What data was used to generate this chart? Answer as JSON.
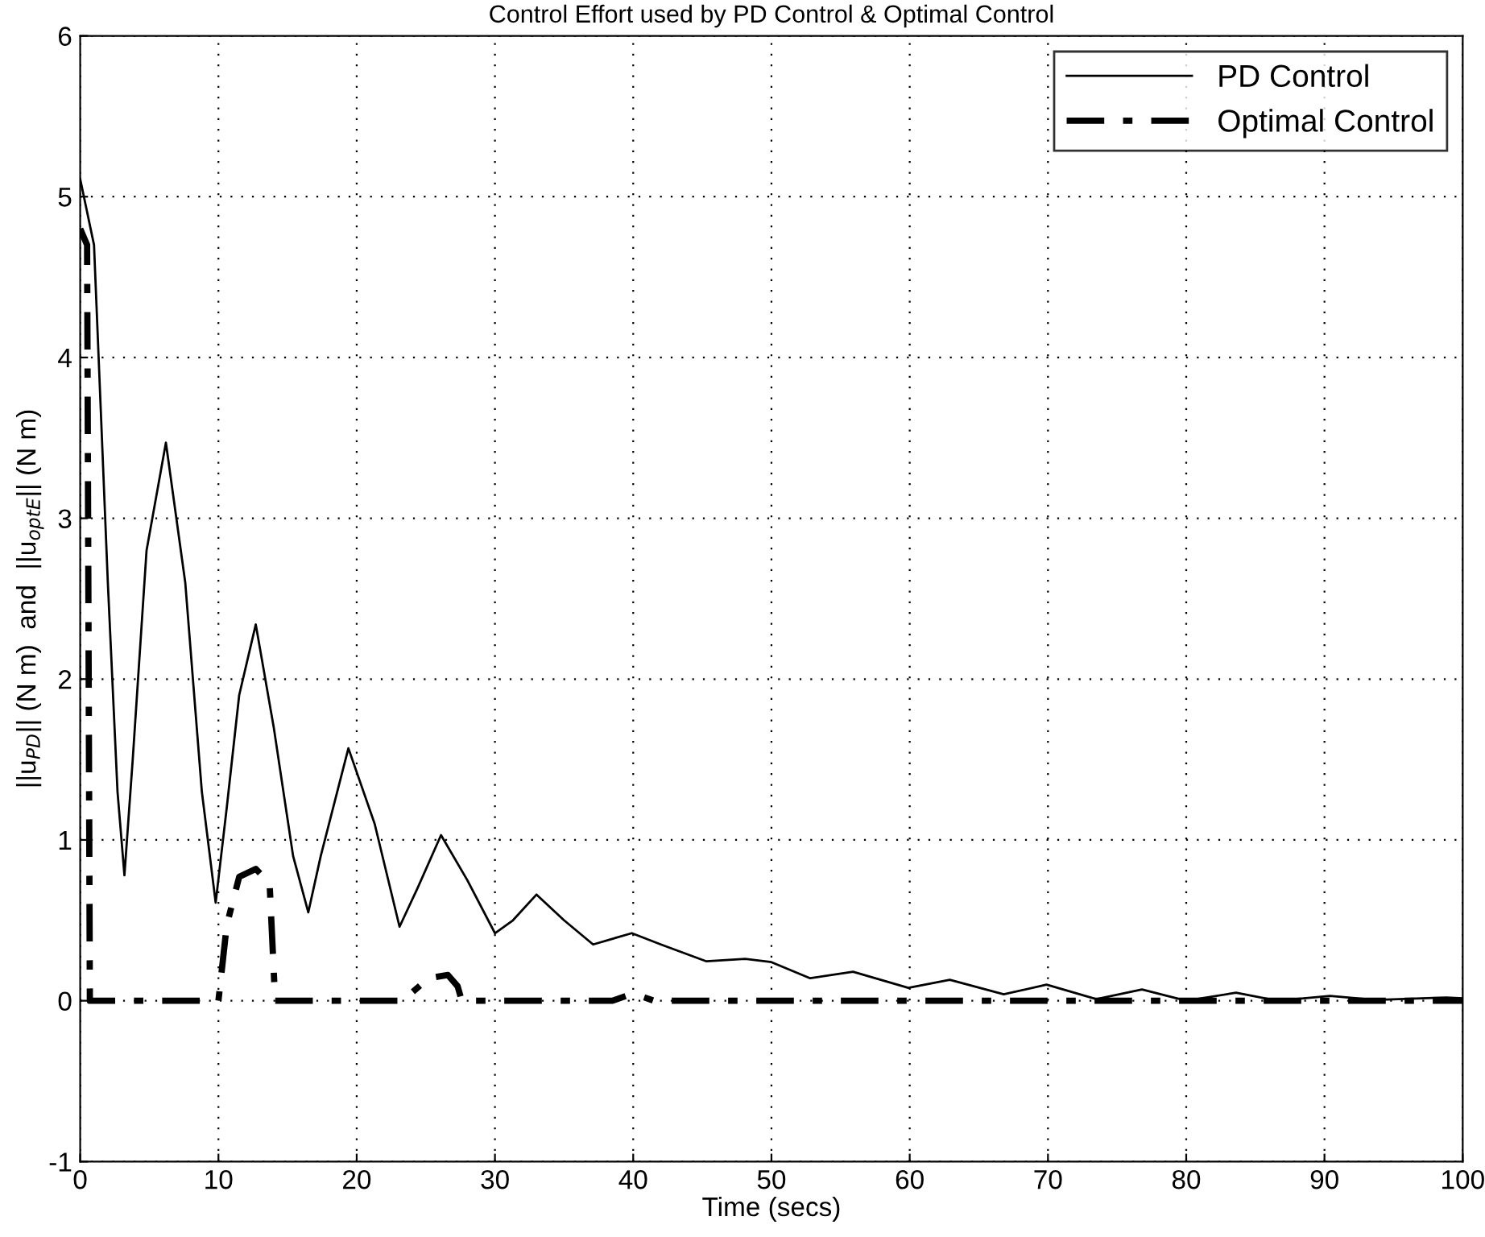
{
  "chart_data": {
    "type": "line",
    "title": "Control Effort used by PD Control & Optimal Control",
    "xlabel": "Time (secs)",
    "ylabel": "||u$_{PD}$|| (N m)  and  ||u$_{optE}$|| (N m)",
    "xlim": [
      0,
      100
    ],
    "ylim": [
      -1,
      6
    ],
    "xticks": [
      0,
      10,
      20,
      30,
      40,
      50,
      60,
      70,
      80,
      90,
      100
    ],
    "yticks": [
      -1,
      0,
      1,
      2,
      3,
      4,
      5,
      6
    ],
    "grid": true,
    "legend": "top right",
    "series": [
      {
        "name": "PD Control",
        "color": "#000000",
        "line_style": "solid",
        "x": [
          0,
          1,
          2,
          2.7,
          3.2,
          3.8,
          4.8,
          6.2,
          7.6,
          8.8,
          9.8,
          10.6,
          11.5,
          12.7,
          14,
          15.4,
          16.5,
          17.4,
          19.4,
          21.3,
          23.1,
          24.4,
          26.1,
          28,
          30,
          31.3,
          33,
          35,
          37.1,
          39.9,
          42,
          45.3,
          48.1,
          50,
          52.8,
          55.9,
          59.9,
          62.9,
          66.8,
          69.9,
          73.5,
          76.8,
          80,
          83.6,
          86.6,
          90.4,
          93.7,
          98.8,
          100
        ],
        "values": [
          5.11,
          4.7,
          2.6,
          1.3,
          0.78,
          1.5,
          2.8,
          3.47,
          2.6,
          1.3,
          0.61,
          1.2,
          1.9,
          2.34,
          1.7,
          0.9,
          0.55,
          0.9,
          1.57,
          1.1,
          0.46,
          0.7,
          1.03,
          0.75,
          0.42,
          0.5,
          0.66,
          0.5,
          0.35,
          0.42,
          0.35,
          0.245,
          0.26,
          0.24,
          0.14,
          0.18,
          0.08,
          0.13,
          0.04,
          0.1,
          0.01,
          0.07,
          0.0,
          0.05,
          0.0,
          0.03,
          0.005,
          0.02,
          0.015
        ]
      },
      {
        "name": "Optimal Control",
        "color": "#000000",
        "line_style": "dashdot",
        "x": [
          0,
          0.5,
          0.7,
          10,
          10.6,
          11.5,
          12.7,
          13.7,
          14.1,
          23.3,
          25.2,
          26.6,
          27.3,
          27.6,
          38.5,
          39.5,
          40.5,
          41.5,
          100
        ],
        "values": [
          4.8,
          4.7,
          0,
          0,
          0.47,
          0.77,
          0.82,
          0.73,
          0,
          0,
          0.14,
          0.16,
          0.09,
          0,
          0,
          0.03,
          0.03,
          0,
          0
        ]
      }
    ]
  }
}
